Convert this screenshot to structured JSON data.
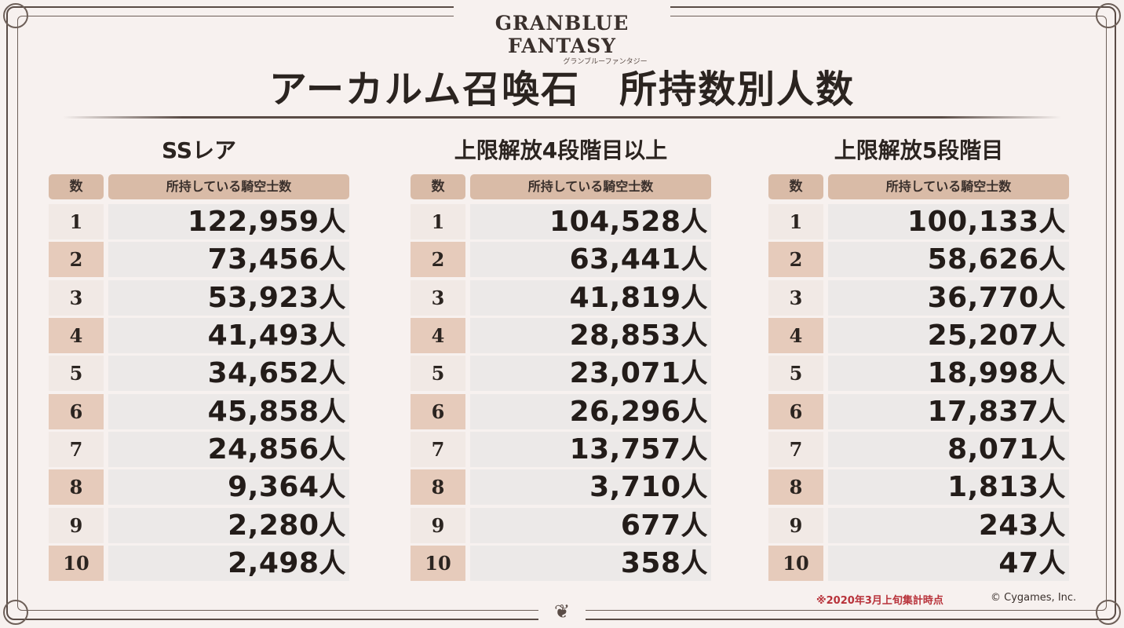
{
  "logo": {
    "main": "GRANBLUE FANTASY",
    "sub": "グランブルーファンタジー"
  },
  "title": "アーカルム召喚石　所持数別人数",
  "header": {
    "count": "数",
    "owners": "所持している騎空士数"
  },
  "unit": "人",
  "tables": [
    {
      "heading": "SSレア",
      "rows": [
        {
          "n": "1",
          "v": "122,959"
        },
        {
          "n": "2",
          "v": "73,456"
        },
        {
          "n": "3",
          "v": "53,923"
        },
        {
          "n": "4",
          "v": "41,493"
        },
        {
          "n": "5",
          "v": "34,652"
        },
        {
          "n": "6",
          "v": "45,858"
        },
        {
          "n": "7",
          "v": "24,856"
        },
        {
          "n": "8",
          "v": "9,364"
        },
        {
          "n": "9",
          "v": "2,280"
        },
        {
          "n": "10",
          "v": "2,498"
        }
      ]
    },
    {
      "heading": "上限解放4段階目以上",
      "rows": [
        {
          "n": "1",
          "v": "104,528"
        },
        {
          "n": "2",
          "v": "63,441"
        },
        {
          "n": "3",
          "v": "41,819"
        },
        {
          "n": "4",
          "v": "28,853"
        },
        {
          "n": "5",
          "v": "23,071"
        },
        {
          "n": "6",
          "v": "26,296"
        },
        {
          "n": "7",
          "v": "13,757"
        },
        {
          "n": "8",
          "v": "3,710"
        },
        {
          "n": "9",
          "v": "677"
        },
        {
          "n": "10",
          "v": "358"
        }
      ]
    },
    {
      "heading": "上限解放5段階目",
      "rows": [
        {
          "n": "1",
          "v": "100,133"
        },
        {
          "n": "2",
          "v": "58,626"
        },
        {
          "n": "3",
          "v": "36,770"
        },
        {
          "n": "4",
          "v": "25,207"
        },
        {
          "n": "5",
          "v": "18,998"
        },
        {
          "n": "6",
          "v": "17,837"
        },
        {
          "n": "7",
          "v": "8,071"
        },
        {
          "n": "8",
          "v": "1,813"
        },
        {
          "n": "9",
          "v": "243"
        },
        {
          "n": "10",
          "v": "47"
        }
      ]
    }
  ],
  "footer": {
    "note": "※2020年3月上旬集計時点",
    "copyright": "© Cygames, Inc."
  },
  "colors": {
    "header_bg": "#d9bba7",
    "note": "#b8323a",
    "frame": "#5a4c46"
  }
}
